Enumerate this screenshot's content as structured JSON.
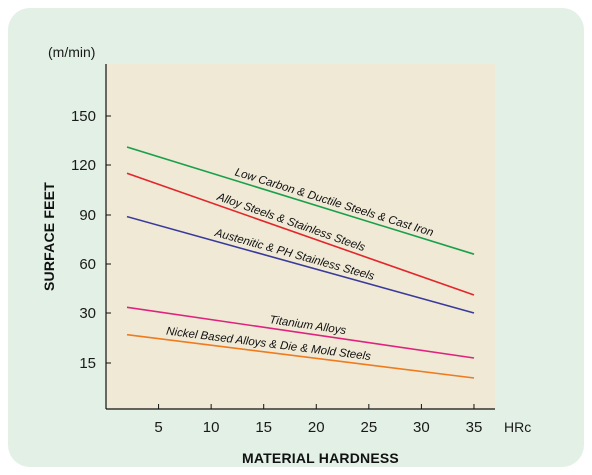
{
  "chart_data": {
    "type": "line",
    "title": "",
    "y_unit": "(m/min)",
    "x_unit": "HRc",
    "xlabel": "MATERIAL HARDNESS",
    "ylabel": "SURFACE FEET",
    "xlim": [
      0,
      37
    ],
    "x_ticks": [
      5,
      10,
      15,
      20,
      25,
      30,
      35
    ],
    "y_tick_labels": [
      "15",
      "30",
      "60",
      "90",
      "120",
      "150"
    ],
    "y_scale": "nonuniform",
    "grid": false,
    "background_color": "#efe9d6",
    "panel_color": "#e3f0e6",
    "series": [
      {
        "name": "Low Carbon & Ductile Steels & Cast Iron",
        "color": "#1aa04a",
        "x": [
          2,
          35
        ],
        "y": [
          131,
          66
        ]
      },
      {
        "name": "Alloy Steels & Stainless Steels",
        "color": "#e3262b",
        "x": [
          2,
          35
        ],
        "y": [
          115,
          41
        ]
      },
      {
        "name": "Austenitic & PH Stainless Steels",
        "color": "#3a3a9a",
        "x": [
          2,
          35
        ],
        "y": [
          89,
          30
        ]
      },
      {
        "name": "Titanium Alloys",
        "color": "#e0227f",
        "x": [
          2,
          35
        ],
        "y": [
          33.5,
          16.5
        ]
      },
      {
        "name": "Nickel Based Alloys & Die & Mold Steels",
        "color": "#f07a1e",
        "x": [
          2,
          35
        ],
        "y": [
          23.5,
          10.5
        ]
      }
    ]
  }
}
